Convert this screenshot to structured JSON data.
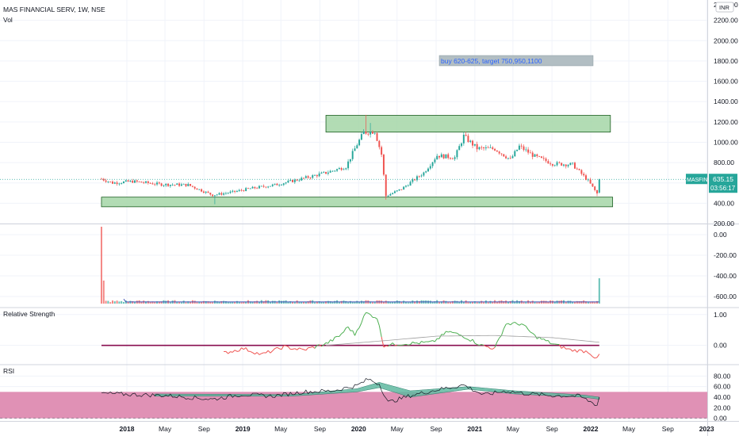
{
  "header": {
    "symbol_line": "MAS FINANCIAL SERV, 1W, NSE",
    "vol_label": "Vol",
    "currency": "INR"
  },
  "annotation": {
    "text": "buy 620-625, target 750,950,1100"
  },
  "price_tag": {
    "symbol": "MASFIN",
    "price": "635.15",
    "countdown": "03:56:17"
  },
  "panes": {
    "rs_label": "Relative Strength",
    "rsi_label": "RSI"
  },
  "colors": {
    "up": "#26a69a",
    "down": "#ef5350",
    "zone_fill": "#a5d6a7",
    "zone_stroke": "#1b5e20",
    "rs_line": "#4caf50",
    "rs_neg": "#ef5350",
    "rs_ma": "#9e9e9e",
    "rsi_band": "#e091b5",
    "rsi_cloud": "#5fb8a0",
    "vol_line": "#3f51b5",
    "price_tag": "#26a69a",
    "note_bg": "#b2bec3",
    "note_text": "#2962ff"
  },
  "chart_data": [
    {
      "type": "candlestick",
      "title": "MAS FINANCIAL SERV, 1W, NSE",
      "ylim": [
        200,
        2400
      ],
      "y_ticks": [
        "2200.00",
        "2000.00",
        "1800.00",
        "1600.00",
        "1400.00",
        "1200.00",
        "1000.00",
        "800.00",
        "600.00",
        "400.00",
        "200.00"
      ],
      "last_price": 635.15,
      "zones": [
        {
          "name": "resistance",
          "from": "2019-09-20",
          "to": "2022-03-04",
          "low": 1100,
          "high": 1265
        },
        {
          "name": "support",
          "from": "2017-10-13",
          "to": "2022-03-11",
          "low": 365,
          "high": 460
        }
      ],
      "anchors": [
        {
          "date": "2017-10-13",
          "price": 640
        },
        {
          "date": "2017-11-17",
          "price": 600
        },
        {
          "date": "2018-01-19",
          "price": 615
        },
        {
          "date": "2018-04-20",
          "price": 585
        },
        {
          "date": "2018-07-13",
          "price": 580
        },
        {
          "date": "2018-09-28",
          "price": 480
        },
        {
          "date": "2018-11-30",
          "price": 510
        },
        {
          "date": "2019-01-25",
          "price": 545
        },
        {
          "date": "2019-04-12",
          "price": 580
        },
        {
          "date": "2019-07-05",
          "price": 640
        },
        {
          "date": "2019-09-20",
          "price": 700
        },
        {
          "date": "2019-11-22",
          "price": 760
        },
        {
          "date": "2019-12-27",
          "price": 980
        },
        {
          "date": "2020-01-17",
          "price": 1095
        },
        {
          "date": "2020-02-21",
          "price": 1110
        },
        {
          "date": "2020-03-13",
          "price": 880
        },
        {
          "date": "2020-03-27",
          "price": 470
        },
        {
          "date": "2020-05-15",
          "price": 540
        },
        {
          "date": "2020-07-24",
          "price": 700
        },
        {
          "date": "2020-09-04",
          "price": 870
        },
        {
          "date": "2020-10-30",
          "price": 850
        },
        {
          "date": "2020-11-27",
          "price": 1060
        },
        {
          "date": "2021-01-08",
          "price": 940
        },
        {
          "date": "2021-03-05",
          "price": 935
        },
        {
          "date": "2021-04-23",
          "price": 830
        },
        {
          "date": "2021-05-21",
          "price": 960
        },
        {
          "date": "2021-07-09",
          "price": 860
        },
        {
          "date": "2021-09-03",
          "price": 790
        },
        {
          "date": "2021-11-05",
          "price": 780
        },
        {
          "date": "2021-12-24",
          "price": 620
        },
        {
          "date": "2022-01-21",
          "price": 495
        },
        {
          "date": "2022-01-28",
          "price": 635
        }
      ]
    },
    {
      "type": "bar",
      "name": "Vol",
      "ylim": [
        -700,
        100
      ],
      "y_ticks": [
        "0.00",
        "-200.00",
        "-400.00",
        "-600.00"
      ],
      "note": "volume histogram with moving-average line",
      "spikes": [
        {
          "date": "2017-10-13",
          "value": 1.0
        },
        {
          "date": "2017-10-20",
          "value": 0.3
        },
        {
          "date": "2022-01-28",
          "value": 0.33
        }
      ],
      "baseline_level": 0.03
    },
    {
      "type": "line",
      "name": "Relative Strength",
      "ylim": [
        -0.6,
        1.2
      ],
      "y_ticks": [
        "1.00",
        "0.00"
      ],
      "start": "2018-11-02",
      "anchors": [
        {
          "date": "2018-11-02",
          "value": -0.25
        },
        {
          "date": "2019-01-04",
          "value": -0.1
        },
        {
          "date": "2019-03-01",
          "value": -0.3
        },
        {
          "date": "2019-05-10",
          "value": -0.05
        },
        {
          "date": "2019-07-12",
          "value": -0.15
        },
        {
          "date": "2019-09-20",
          "value": 0.05
        },
        {
          "date": "2019-11-01",
          "value": 0.3
        },
        {
          "date": "2019-11-29",
          "value": 0.6
        },
        {
          "date": "2019-12-20",
          "value": 0.35
        },
        {
          "date": "2020-01-24",
          "value": 1.05
        },
        {
          "date": "2020-02-28",
          "value": 0.9
        },
        {
          "date": "2020-03-20",
          "value": 0.0
        },
        {
          "date": "2020-05-15",
          "value": 0.05
        },
        {
          "date": "2020-08-21",
          "value": 0.1
        },
        {
          "date": "2020-10-09",
          "value": 0.45
        },
        {
          "date": "2020-11-27",
          "value": 0.3
        },
        {
          "date": "2021-01-22",
          "value": 0.0
        },
        {
          "date": "2021-03-05",
          "value": -0.1
        },
        {
          "date": "2021-04-09",
          "value": 0.7
        },
        {
          "date": "2021-05-28",
          "value": 0.7
        },
        {
          "date": "2021-07-09",
          "value": 0.3
        },
        {
          "date": "2021-09-03",
          "value": 0.05
        },
        {
          "date": "2021-10-29",
          "value": -0.15
        },
        {
          "date": "2021-12-24",
          "value": -0.2
        },
        {
          "date": "2022-01-21",
          "value": -0.45
        },
        {
          "date": "2022-01-28",
          "value": -0.3
        }
      ],
      "ma_anchors": [
        {
          "date": "2019-09-20",
          "value": 0.0
        },
        {
          "date": "2020-03-20",
          "value": 0.15
        },
        {
          "date": "2020-09-04",
          "value": 0.3
        },
        {
          "date": "2021-03-05",
          "value": 0.32
        },
        {
          "date": "2021-09-03",
          "value": 0.25
        },
        {
          "date": "2022-01-28",
          "value": 0.1
        }
      ]
    },
    {
      "type": "line",
      "name": "RSI",
      "ylim": [
        -5,
        100
      ],
      "y_ticks": [
        "80.00",
        "60.00",
        "40.00",
        "20.00",
        "0.00"
      ],
      "band": [
        0,
        50
      ],
      "anchors": [
        {
          "date": "2017-10-13",
          "value": 47
        },
        {
          "date": "2018-01-19",
          "value": 45
        },
        {
          "date": "2018-05-11",
          "value": 43
        },
        {
          "date": "2018-09-28",
          "value": 36
        },
        {
          "date": "2018-12-28",
          "value": 45
        },
        {
          "date": "2019-04-05",
          "value": 42
        },
        {
          "date": "2019-07-12",
          "value": 50
        },
        {
          "date": "2019-10-11",
          "value": 52
        },
        {
          "date": "2019-12-27",
          "value": 62
        },
        {
          "date": "2020-01-31",
          "value": 74
        },
        {
          "date": "2020-03-06",
          "value": 65
        },
        {
          "date": "2020-04-03",
          "value": 30
        },
        {
          "date": "2020-06-12",
          "value": 43
        },
        {
          "date": "2020-09-04",
          "value": 54
        },
        {
          "date": "2020-11-27",
          "value": 63
        },
        {
          "date": "2021-01-29",
          "value": 44
        },
        {
          "date": "2021-04-09",
          "value": 52
        },
        {
          "date": "2021-06-04",
          "value": 47
        },
        {
          "date": "2021-09-03",
          "value": 43
        },
        {
          "date": "2021-11-26",
          "value": 42
        },
        {
          "date": "2022-01-21",
          "value": 25
        },
        {
          "date": "2022-01-28",
          "value": 40
        }
      ],
      "cloud_anchors": [
        {
          "date": "2018-03-30",
          "a": 46,
          "b": 42
        },
        {
          "date": "2019-06-07",
          "a": 45,
          "b": 42
        },
        {
          "date": "2019-12-27",
          "a": 56,
          "b": 50
        },
        {
          "date": "2020-03-06",
          "a": 68,
          "b": 58
        },
        {
          "date": "2020-06-12",
          "a": 52,
          "b": 40
        },
        {
          "date": "2020-12-11",
          "a": 60,
          "b": 55
        },
        {
          "date": "2021-05-07",
          "a": 52,
          "b": 46
        },
        {
          "date": "2021-12-10",
          "a": 44,
          "b": 40
        },
        {
          "date": "2022-01-28",
          "a": 40,
          "b": 36
        }
      ]
    }
  ],
  "time_axis": {
    "labels": [
      "2018",
      "May",
      "Sep",
      "2019",
      "May",
      "Sep",
      "2020",
      "May",
      "Sep",
      "2021",
      "May",
      "Sep",
      "2022",
      "May",
      "Sep",
      "2023"
    ],
    "dates": [
      "2018-01-01",
      "2018-05-01",
      "2018-09-01",
      "2019-01-01",
      "2019-05-01",
      "2019-09-01",
      "2020-01-01",
      "2020-05-01",
      "2020-09-01",
      "2021-01-01",
      "2021-05-01",
      "2021-09-01",
      "2022-01-01",
      "2022-05-01",
      "2022-09-01",
      "2023-01-01"
    ]
  }
}
